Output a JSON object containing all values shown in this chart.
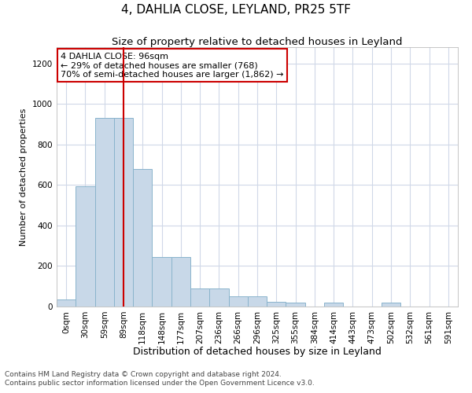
{
  "title": "4, DAHLIA CLOSE, LEYLAND, PR25 5TF",
  "subtitle": "Size of property relative to detached houses in Leyland",
  "xlabel": "Distribution of detached houses by size in Leyland",
  "ylabel": "Number of detached properties",
  "categories": [
    "0sqm",
    "30sqm",
    "59sqm",
    "89sqm",
    "118sqm",
    "148sqm",
    "177sqm",
    "207sqm",
    "236sqm",
    "266sqm",
    "296sqm",
    "325sqm",
    "355sqm",
    "384sqm",
    "414sqm",
    "443sqm",
    "473sqm",
    "502sqm",
    "532sqm",
    "561sqm",
    "591sqm"
  ],
  "bar_values": [
    35,
    595,
    930,
    930,
    680,
    245,
    245,
    90,
    90,
    50,
    50,
    25,
    20,
    0,
    20,
    0,
    0,
    20,
    0,
    0,
    0
  ],
  "bar_color": "#c8d8e8",
  "bar_edgecolor": "#8ab4cc",
  "bar_width": 1.0,
  "vline_x": 3.5,
  "vline_color": "#cc0000",
  "ylim": [
    0,
    1280
  ],
  "yticks": [
    0,
    200,
    400,
    600,
    800,
    1000,
    1200
  ],
  "annotation_text": "4 DAHLIA CLOSE: 96sqm\n← 29% of detached houses are smaller (768)\n70% of semi-detached houses are larger (1,862) →",
  "annotation_box_color": "#ffffff",
  "annotation_box_edgecolor": "#cc0000",
  "footer_line1": "Contains HM Land Registry data © Crown copyright and database right 2024.",
  "footer_line2": "Contains public sector information licensed under the Open Government Licence v3.0.",
  "background_color": "#ffffff",
  "grid_color": "#d0d8e8",
  "title_fontsize": 11,
  "subtitle_fontsize": 9.5,
  "xlabel_fontsize": 9,
  "ylabel_fontsize": 8,
  "tick_fontsize": 7.5,
  "footer_fontsize": 6.5,
  "ann_fontsize": 8
}
